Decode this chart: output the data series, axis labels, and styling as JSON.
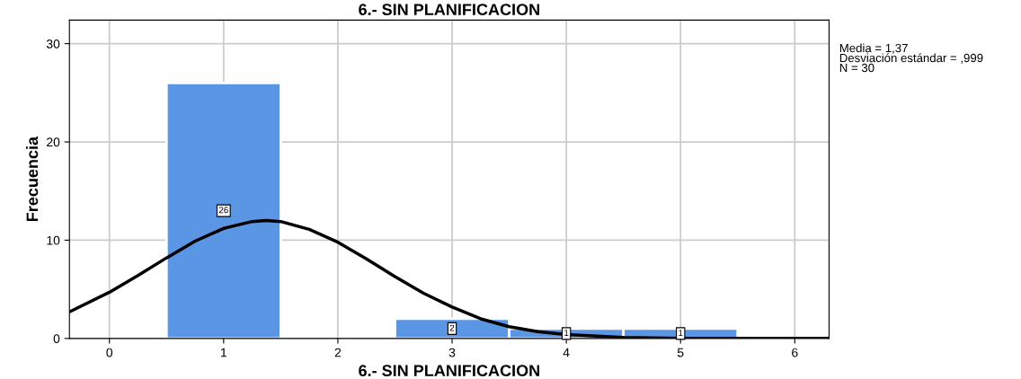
{
  "chart_data": {
    "type": "histogram",
    "title": "6.- SIN PLANIFICACION",
    "xlabel": "6.- SIN PLANIFICACION",
    "ylabel": "Frecuencia",
    "bins": [
      0.5,
      1.5,
      2.5,
      3.5,
      4.5,
      5.5
    ],
    "values": [
      26,
      0,
      2,
      1,
      1
    ],
    "color": "#5a96e3",
    "value_labels": [
      "26",
      null,
      "2",
      "1",
      "1"
    ],
    "series": [
      {
        "type": "line",
        "color": "#000000",
        "x": [
          -0.35,
          0,
          0.25,
          0.5,
          0.75,
          1,
          1.25,
          1.37,
          1.5,
          1.75,
          2,
          2.25,
          2.5,
          2.75,
          3,
          3.25,
          3.5,
          3.75,
          4,
          4.5,
          5,
          5.5,
          6,
          6.3
        ],
        "values": [
          2.7,
          4.7,
          6.4,
          8.2,
          9.9,
          11.2,
          11.9,
          12.0,
          11.9,
          11.1,
          9.8,
          8.1,
          6.3,
          4.6,
          3.2,
          2.0,
          1.2,
          0.7,
          0.4,
          0.1,
          0,
          0,
          0,
          0
        ]
      }
    ],
    "xlim": [
      -0.35,
      6.3
    ],
    "ylim": [
      0,
      32.4
    ],
    "xticks": [
      0,
      1,
      2,
      3,
      4,
      5,
      6
    ],
    "yticks": [
      0,
      10,
      20,
      30
    ],
    "grid": true,
    "annotations": [
      "Media = 1,37",
      "Desviación estándar = ,999",
      "N = 30"
    ]
  }
}
